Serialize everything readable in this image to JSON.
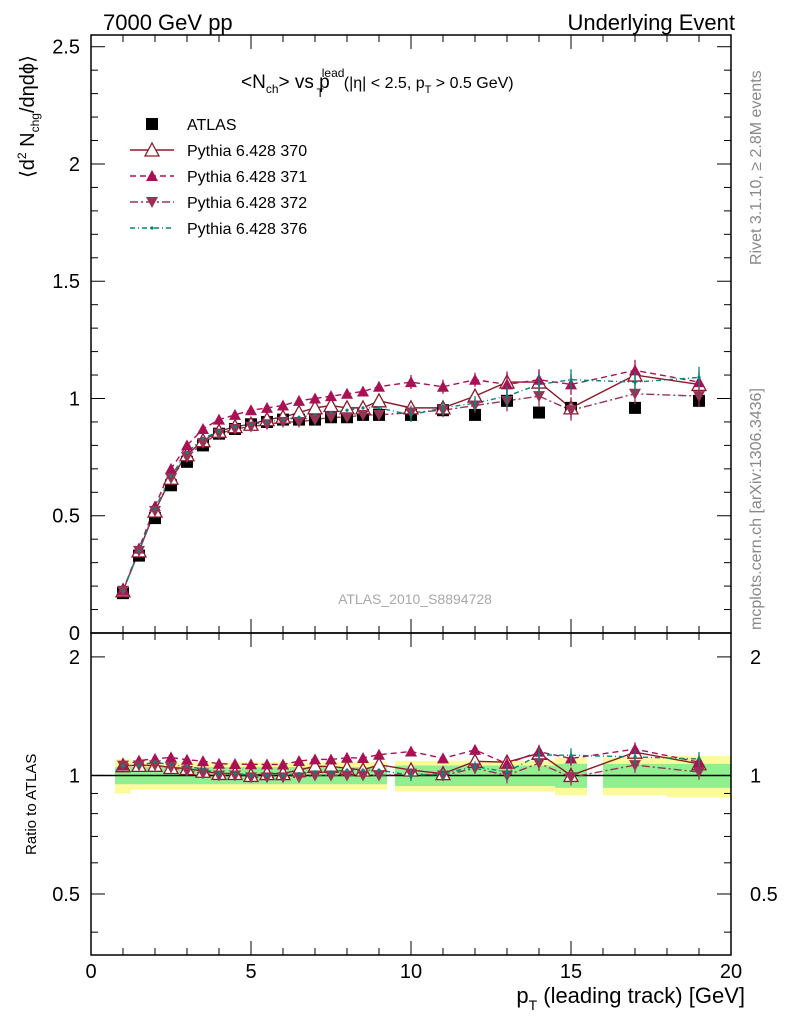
{
  "header": {
    "left": "7000 GeV pp",
    "right": "Underlying Event"
  },
  "side_labels": {
    "rivet": "Rivet 3.1.10, ≥ 2.8M events",
    "mcplots": "mcplots.cern.ch [arXiv:1306.3436]"
  },
  "watermark": "ATLAS_2010_S8894728",
  "chart_data": {
    "type": "scatter",
    "title": {
      "n": "N",
      "ch": "ch",
      "vs": "> vs p",
      "lead": "lead",
      "T": "T",
      "cut": "(|η| < 2.5, p",
      "cutT": "T",
      "cut2": " > 0.5 GeV)"
    },
    "ylabel_main": {
      "a": "⟨d",
      "b": "2",
      "c": " N",
      "d": "chg",
      "e": "/dηdϕ⟩"
    },
    "ylabel_ratio": "Ratio to ATLAS",
    "xlabel": "p",
    "xlabel_sub": "T",
    "xlabel_rest": " (leading track) [GeV]",
    "xlim": [
      0,
      20
    ],
    "ylim_main": [
      0,
      2.55
    ],
    "ylim_ratio": [
      0.35,
      2.3
    ],
    "x_ticks": [
      "0",
      "5",
      "10",
      "15",
      "20"
    ],
    "y_ticks_main": [
      "0",
      "0.5",
      "1",
      "1.5",
      "2",
      "2.5"
    ],
    "y_ticks_ratio": [
      "0.5",
      "1",
      "2"
    ],
    "legend": [
      "ATLAS",
      "Pythia 6.428 370",
      "Pythia 6.428 371",
      "Pythia 6.428 372",
      "Pythia 6.428 376"
    ],
    "x": [
      1.0,
      1.5,
      2.0,
      2.5,
      3.0,
      3.5,
      4.0,
      4.5,
      5.0,
      5.5,
      6.0,
      6.5,
      7.0,
      7.5,
      8.0,
      8.5,
      9.0,
      10.0,
      11.0,
      12.0,
      13.0,
      14.0,
      15.0,
      17.0,
      19.0
    ],
    "series": [
      {
        "name": "ATLAS",
        "values": [
          0.17,
          0.33,
          0.49,
          0.63,
          0.73,
          0.8,
          0.85,
          0.87,
          0.89,
          0.9,
          0.91,
          0.91,
          0.91,
          0.92,
          0.92,
          0.93,
          0.93,
          0.93,
          0.95,
          0.93,
          0.99,
          0.94,
          0.96,
          0.96,
          0.99
        ]
      },
      {
        "name": "Pythia 6.428 370",
        "values": [
          0.18,
          0.35,
          0.52,
          0.66,
          0.76,
          0.82,
          0.86,
          0.88,
          0.89,
          0.91,
          0.92,
          0.94,
          0.96,
          0.97,
          0.96,
          0.96,
          0.99,
          0.96,
          0.96,
          1.01,
          1.07,
          1.07,
          0.96,
          1.1,
          1.06
        ]
      },
      {
        "name": "Pythia 6.428 371",
        "values": [
          0.18,
          0.36,
          0.54,
          0.7,
          0.8,
          0.87,
          0.91,
          0.93,
          0.95,
          0.96,
          0.97,
          0.99,
          1.0,
          1.01,
          1.02,
          1.03,
          1.05,
          1.07,
          1.05,
          1.08,
          1.06,
          1.08,
          1.06,
          1.12,
          1.07
        ]
      },
      {
        "name": "Pythia 6.428 372",
        "values": [
          0.18,
          0.35,
          0.52,
          0.66,
          0.75,
          0.81,
          0.85,
          0.87,
          0.88,
          0.89,
          0.9,
          0.9,
          0.91,
          0.92,
          0.92,
          0.93,
          0.93,
          0.94,
          0.95,
          0.97,
          0.99,
          1.01,
          0.95,
          1.02,
          1.01
        ]
      },
      {
        "name": "Pythia 6.428 376",
        "values": [
          0.18,
          0.35,
          0.53,
          0.67,
          0.77,
          0.83,
          0.86,
          0.88,
          0.89,
          0.9,
          0.91,
          0.92,
          0.93,
          0.94,
          0.95,
          0.96,
          0.96,
          0.93,
          0.96,
          0.98,
          1.01,
          1.06,
          1.08,
          1.07,
          1.09
        ]
      }
    ],
    "ratio_band_inner": [
      0.95,
      0.95,
      0.95,
      0.95,
      0.95,
      0.95,
      0.95,
      0.95,
      0.95,
      0.95,
      0.95,
      0.95,
      0.95,
      0.95,
      0.95,
      0.95,
      0.95,
      0.94,
      0.94,
      0.94,
      0.94,
      0.94,
      0.93,
      0.93,
      0.93
    ],
    "ratio_band_outer": [
      0.9,
      0.92,
      0.92,
      0.92,
      0.92,
      0.92,
      0.92,
      0.92,
      0.92,
      0.92,
      0.92,
      0.92,
      0.92,
      0.92,
      0.92,
      0.92,
      0.92,
      0.91,
      0.91,
      0.91,
      0.91,
      0.91,
      0.89,
      0.89,
      0.88
    ],
    "colors": {
      "atlas": "#000000",
      "p370": "#8b1a2a",
      "p371": "#aa1155",
      "p372": "#993355",
      "p376": "#008877",
      "band_inner": "#90f090",
      "band_outer": "#fbfb9a"
    }
  }
}
